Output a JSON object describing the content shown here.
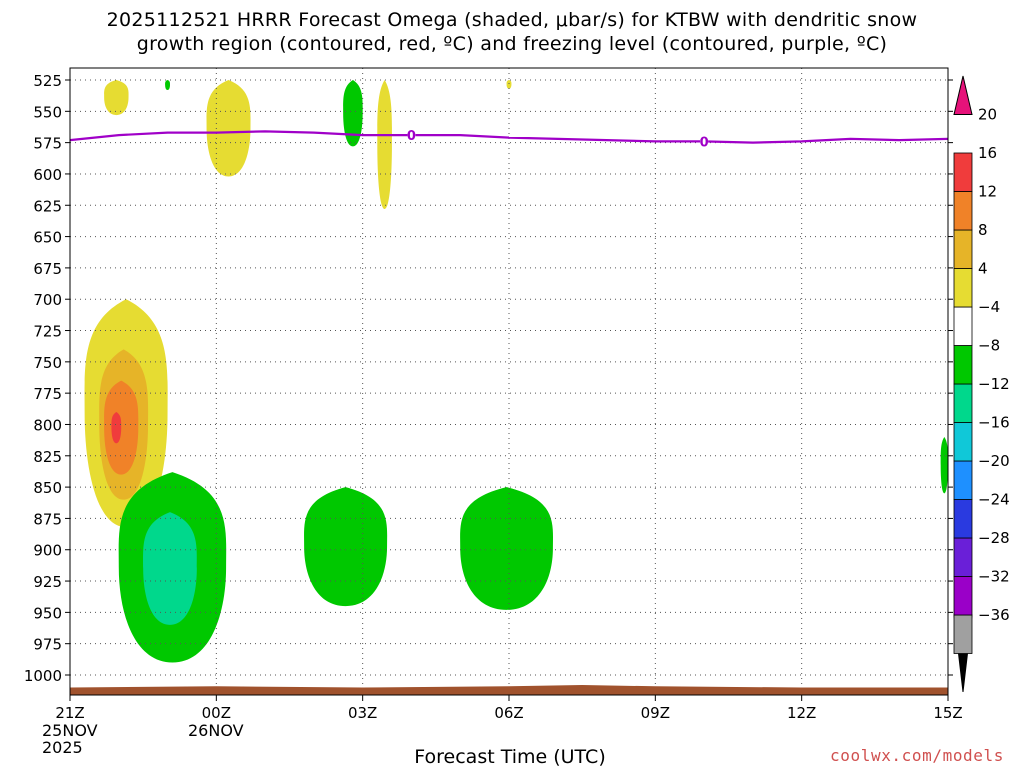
{
  "title": {
    "line1": "2025112521 HRRR Forecast Omega (shaded, μbar/s) for KTBW with dendritic snow",
    "line2": "growth region (contoured, red, ºC) and freezing level (contoured, purple, ºC)"
  },
  "x_axis": {
    "label": "Forecast Time (UTC)",
    "ticks": [
      "21Z",
      "00Z",
      "03Z",
      "06Z",
      "09Z",
      "12Z",
      "15Z"
    ],
    "date_labels": [
      {
        "tick": "21Z",
        "lines": [
          "25NOV",
          "2025"
        ]
      },
      {
        "tick": "00Z",
        "lines": [
          "26NOV"
        ]
      }
    ]
  },
  "credit": "coolwx.com/models",
  "colors": {
    "freezing_level": "#a000c8",
    "terrain": "#a0522d",
    "grid": "#555555"
  },
  "chart_data": {
    "type": "heatmap",
    "x_unit": "forecast hours from 2025-11-25 21Z",
    "x_range": [
      0,
      18
    ],
    "y_axis": {
      "unit": "hPa",
      "inverted": true,
      "range": [
        525,
        1000
      ],
      "ticks": [
        525,
        550,
        575,
        600,
        625,
        650,
        675,
        700,
        725,
        750,
        775,
        800,
        825,
        850,
        875,
        900,
        925,
        950,
        975,
        1000
      ]
    },
    "grid": true,
    "colorbar": {
      "levels": [
        -36,
        -32,
        -28,
        -24,
        -20,
        -16,
        -12,
        -8,
        -4,
        4,
        8,
        12,
        16,
        20
      ],
      "colors": [
        "#000000",
        "#a0a0a0",
        "#9a00c8",
        "#6a1fd8",
        "#2a3ae0",
        "#1e90ff",
        "#10c8d8",
        "#00d88c",
        "#00c800",
        "#ffffff",
        "#e6dc32",
        "#e6b428",
        "#f08228",
        "#f03c3c",
        "#e6127a"
      ]
    },
    "shaded_regions": [
      {
        "value_range": [
          4,
          8
        ],
        "x": [
          0.7,
          1.2
        ],
        "p": [
          525,
          553
        ],
        "color": "#e6dc32"
      },
      {
        "value_range": [
          4,
          8
        ],
        "x": [
          2.8,
          3.7
        ],
        "p": [
          525,
          602
        ],
        "color": "#e6dc32"
      },
      {
        "value_range": [
          4,
          8
        ],
        "x": [
          6.3,
          6.6
        ],
        "p": [
          525,
          628
        ],
        "color": "#e6dc32"
      },
      {
        "value_range": [
          4,
          8
        ],
        "x": [
          0.3,
          2.0
        ],
        "p": [
          700,
          882
        ],
        "color": "#e6dc32"
      },
      {
        "value_range": [
          8,
          12
        ],
        "x": [
          0.6,
          1.6
        ],
        "p": [
          740,
          860
        ],
        "color": "#e6b428"
      },
      {
        "value_range": [
          12,
          16
        ],
        "x": [
          0.7,
          1.4
        ],
        "p": [
          765,
          840
        ],
        "color": "#f08228"
      },
      {
        "value_range": [
          16,
          20
        ],
        "x": [
          0.85,
          1.05
        ],
        "p": [
          790,
          815
        ],
        "color": "#f03c3c"
      },
      {
        "value_range": [
          -8,
          -4
        ],
        "x": [
          1.0,
          3.2
        ],
        "p": [
          838,
          990
        ],
        "color": "#00c800"
      },
      {
        "value_range": [
          -12,
          -8
        ],
        "x": [
          1.5,
          2.6
        ],
        "p": [
          870,
          960
        ],
        "color": "#00d88c"
      },
      {
        "value_range": [
          -8,
          -4
        ],
        "x": [
          4.8,
          6.5
        ],
        "p": [
          850,
          945
        ],
        "color": "#00c800"
      },
      {
        "value_range": [
          -8,
          -4
        ],
        "x": [
          8.0,
          9.9
        ],
        "p": [
          850,
          948
        ],
        "color": "#00c800"
      },
      {
        "value_range": [
          -8,
          -4
        ],
        "x": [
          5.6,
          6.0
        ],
        "p": [
          525,
          578
        ],
        "color": "#00c800"
      },
      {
        "value_range": [
          -8,
          -4
        ],
        "x": [
          1.95,
          2.05
        ],
        "p": [
          525,
          533
        ],
        "color": "#00c800"
      },
      {
        "value_range": [
          -8,
          -4
        ],
        "x": [
          17.85,
          18.0
        ],
        "p": [
          810,
          855
        ],
        "color": "#00c800"
      },
      {
        "value_range": [
          4,
          8
        ],
        "x": [
          8.95,
          9.05
        ],
        "p": [
          525,
          532
        ],
        "color": "#e6dc32"
      }
    ],
    "freezing_level": {
      "label": "0",
      "x": [
        0,
        1,
        2,
        3,
        4,
        5,
        6,
        7,
        8,
        9,
        10,
        11,
        12,
        13,
        14,
        15,
        16,
        17,
        18
      ],
      "p": [
        573,
        569,
        567,
        567,
        566,
        567,
        569,
        569,
        569,
        571,
        572,
        573,
        574,
        574,
        575,
        574,
        572,
        573,
        572
      ],
      "contour_labels_at_x": [
        7,
        13
      ]
    },
    "terrain": {
      "x": [
        0,
        3,
        6,
        9,
        10.5,
        12,
        15,
        18
      ],
      "p": [
        1010,
        1009,
        1010,
        1009,
        1008,
        1009,
        1010,
        1010
      ]
    }
  }
}
